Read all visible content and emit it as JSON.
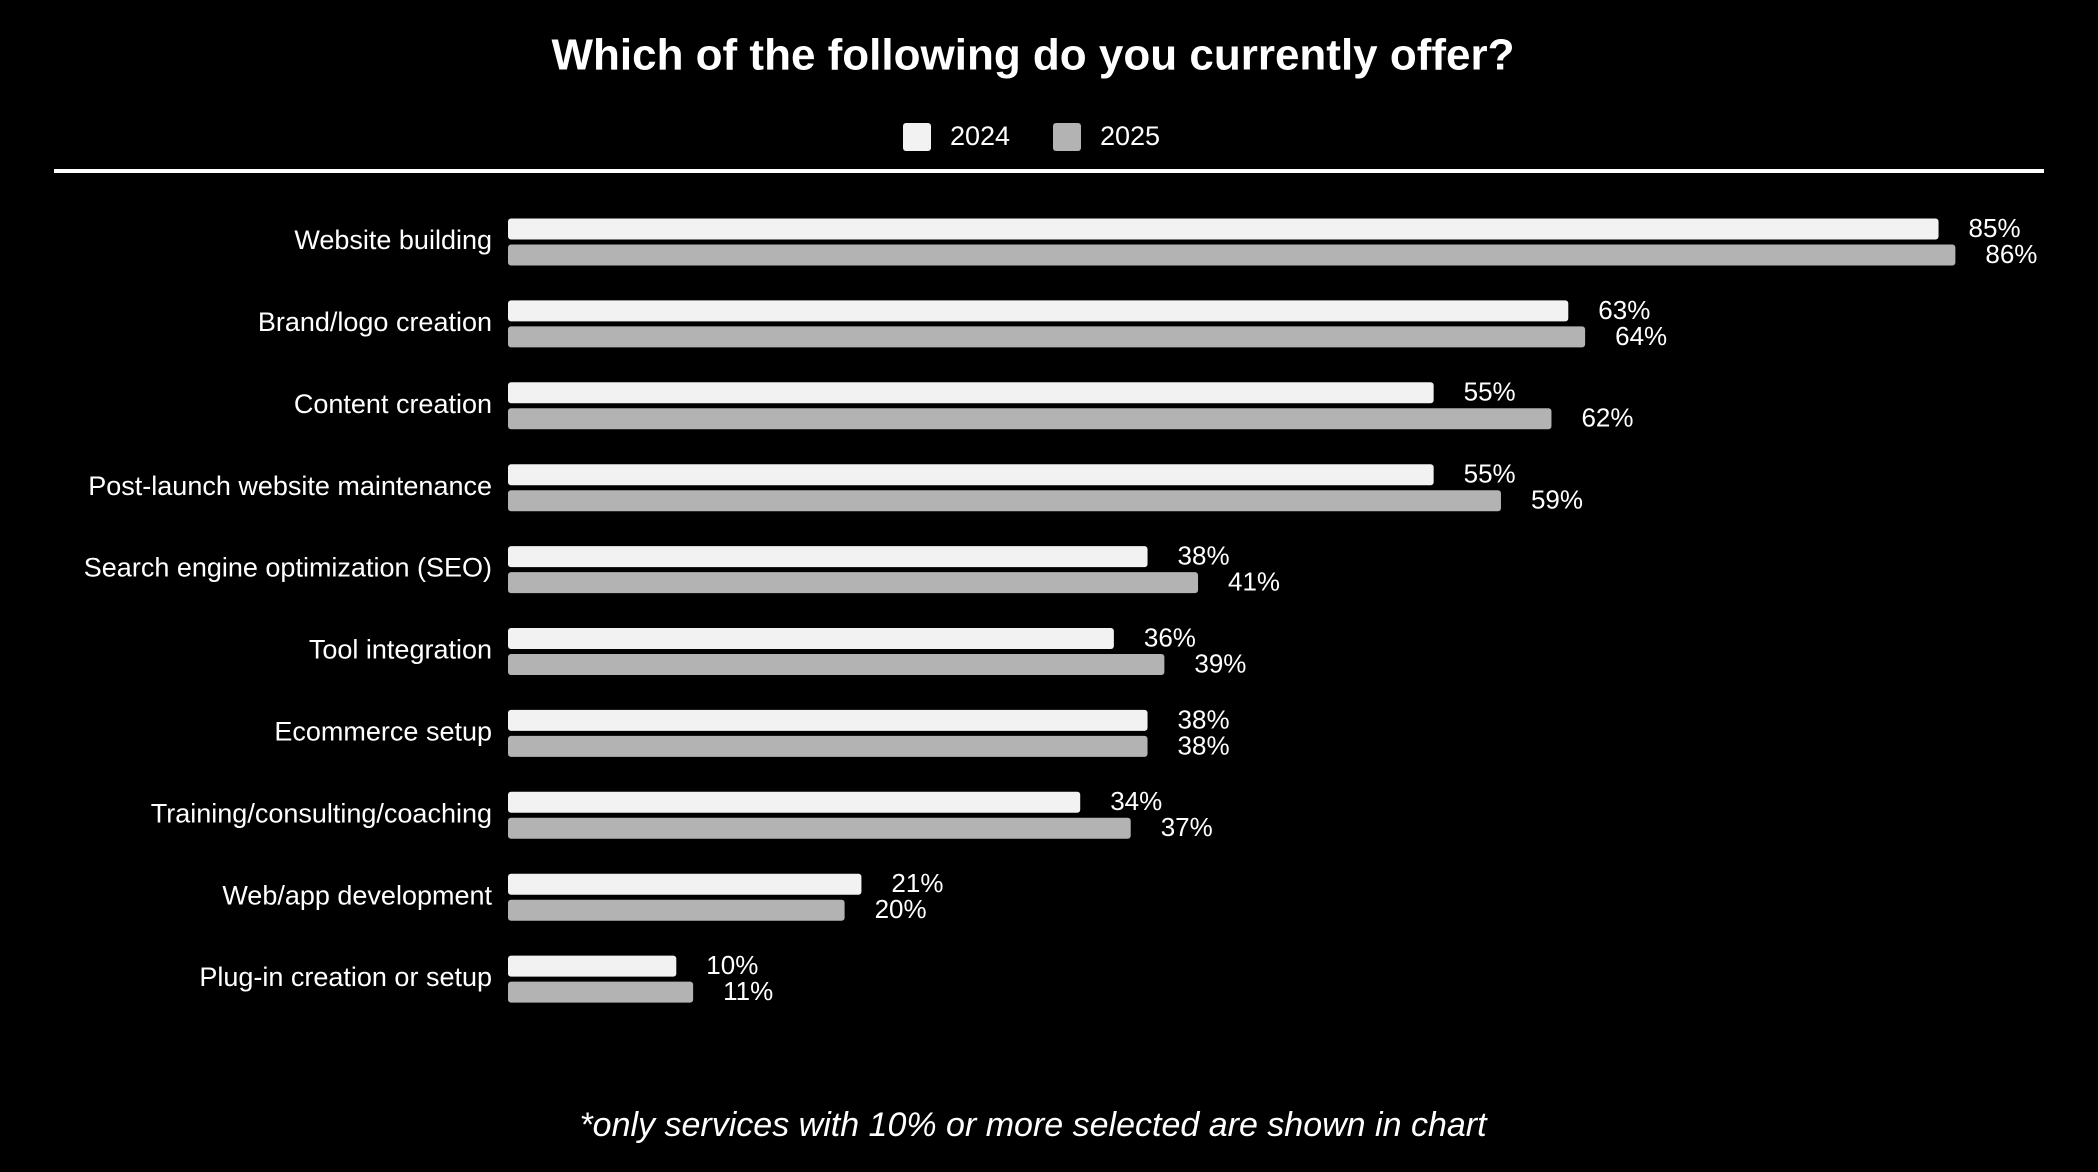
{
  "chart_data": {
    "type": "bar",
    "orientation": "horizontal",
    "title": "Which of the following do you currently offer?",
    "categories": [
      "Website building",
      "Brand/logo creation",
      "Content creation",
      "Post-launch website maintenance",
      "Search engine optimization (SEO)",
      "Tool integration",
      "Ecommerce setup",
      "Training/consulting/coaching",
      "Web/app development",
      "Plug-in creation or setup"
    ],
    "series": [
      {
        "name": "2024",
        "color": "#f2f2f2",
        "values": [
          85,
          63,
          55,
          55,
          38,
          36,
          38,
          34,
          21,
          10
        ],
        "value_labels": [
          "85%",
          "63%",
          "55%",
          "55%",
          "38%",
          "36%",
          "38%",
          "34%",
          "21%",
          "10%"
        ]
      },
      {
        "name": "2025",
        "color": "#b3b3b3",
        "values": [
          86,
          64,
          62,
          59,
          41,
          39,
          38,
          37,
          20,
          11
        ],
        "value_labels": [
          "86%",
          "64%",
          "62%",
          "59%",
          "41%",
          "39%",
          "38%",
          "37%",
          "20%",
          "11%"
        ]
      }
    ],
    "footnote": "*only services with 10% or more selected are shown in chart"
  }
}
